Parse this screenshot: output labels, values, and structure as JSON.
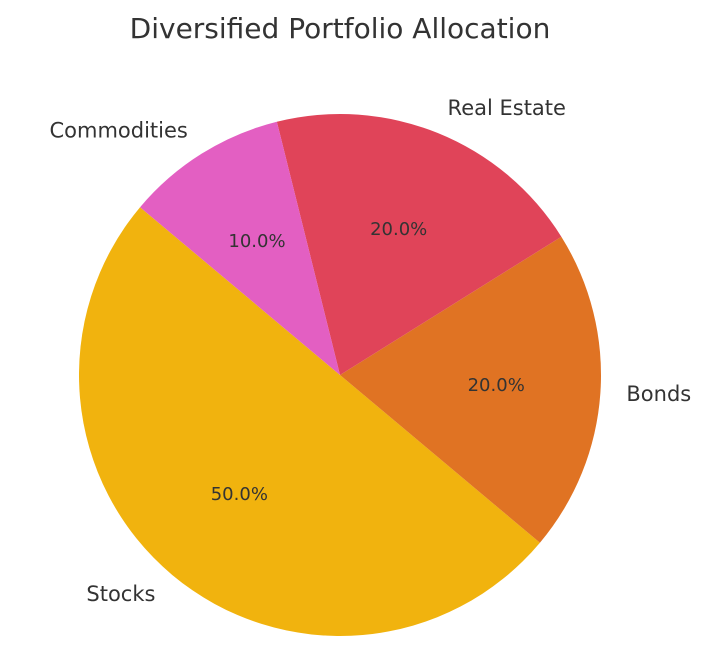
{
  "chart_data": {
    "type": "pie",
    "title": "Diversified Portfolio Allocation",
    "categories": [
      "Stocks",
      "Bonds",
      "Real Estate",
      "Commodities"
    ],
    "values": [
      50,
      20,
      20,
      10
    ],
    "percent_labels": [
      "50.0%",
      "20.0%",
      "20.0%",
      "10.0%"
    ],
    "colors": [
      "#F1B30E",
      "#E07323",
      "#E04459",
      "#E35FC2"
    ],
    "start_angle_deg": 140,
    "direction": "counterclockwise"
  }
}
